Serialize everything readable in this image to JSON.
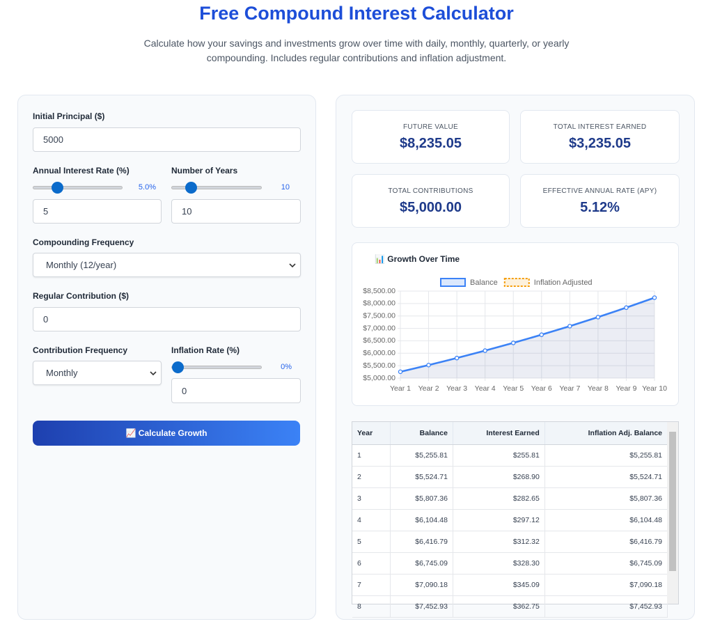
{
  "header": {
    "title": "Free Compound Interest Calculator",
    "subtitle": "Calculate how your savings and investments grow over time with daily, monthly, quarterly, or yearly compounding. Includes regular contributions and inflation adjustment."
  },
  "form": {
    "principal_label": "Initial Principal ($)",
    "principal_value": "5000",
    "rate_label": "Annual Interest Rate (%)",
    "rate_display": "5.0%",
    "rate_value": "5",
    "years_label": "Number of Years",
    "years_display": "10",
    "years_value": "10",
    "compounding_label": "Compounding Frequency",
    "compounding_value": "Monthly (12/year)",
    "contribution_label": "Regular Contribution ($)",
    "contribution_value": "0",
    "contribution_freq_label": "Contribution Frequency",
    "contribution_freq_value": "Monthly",
    "inflation_label": "Inflation Rate (%)",
    "inflation_display": "0%",
    "inflation_value": "0",
    "button": "📈 Calculate Growth"
  },
  "stats": [
    {
      "label": "FUTURE VALUE",
      "value": "$8,235.05"
    },
    {
      "label": "TOTAL INTEREST EARNED",
      "value": "$3,235.05"
    },
    {
      "label": "TOTAL CONTRIBUTIONS",
      "value": "$5,000.00"
    },
    {
      "label": "EFFECTIVE ANNUAL RATE (APY)",
      "value": "5.12%"
    }
  ],
  "chart_data": {
    "type": "line",
    "title": "📊 Growth Over Time",
    "categories": [
      "Year 1",
      "Year 2",
      "Year 3",
      "Year 4",
      "Year 5",
      "Year 6",
      "Year 7",
      "Year 8",
      "Year 9",
      "Year 10"
    ],
    "series": [
      {
        "name": "Balance",
        "color": "#3b82f6",
        "values": [
          5255.81,
          5524.71,
          5807.36,
          6104.48,
          6416.79,
          6745.09,
          7090.18,
          7452.93,
          7834.23,
          8235.05
        ]
      },
      {
        "name": "Inflation Adjusted",
        "color": "#f59e0b",
        "values": [
          5255.81,
          5524.71,
          5807.36,
          6104.48,
          6416.79,
          6745.09,
          7090.18,
          7452.93,
          7834.23,
          8235.05
        ]
      }
    ],
    "ylim": [
      5000,
      8500
    ],
    "yticks": [
      {
        "value": 5000,
        "label": "$5,000.00"
      },
      {
        "value": 5500,
        "label": "$5,500.00"
      },
      {
        "value": 6000,
        "label": "$6,000.00"
      },
      {
        "value": 6500,
        "label": "$6,500.00"
      },
      {
        "value": 7000,
        "label": "$7,000.00"
      },
      {
        "value": 7500,
        "label": "$7,500.00"
      },
      {
        "value": 8000,
        "label": "$8,000.00"
      },
      {
        "value": 8500,
        "label": "$8,500.00"
      }
    ],
    "grid": true,
    "legend": "top"
  },
  "table": {
    "header": [
      "Year",
      "Balance",
      "Interest Earned",
      "Inflation Adj. Balance"
    ],
    "rows": [
      [
        "1",
        "$5,255.81",
        "$255.81",
        "$5,255.81"
      ],
      [
        "2",
        "$5,524.71",
        "$268.90",
        "$5,524.71"
      ],
      [
        "3",
        "$5,807.36",
        "$282.65",
        "$5,807.36"
      ],
      [
        "4",
        "$6,104.48",
        "$297.12",
        "$6,104.48"
      ],
      [
        "5",
        "$6,416.79",
        "$312.32",
        "$6,416.79"
      ],
      [
        "6",
        "$6,745.09",
        "$328.30",
        "$6,745.09"
      ],
      [
        "7",
        "$7,090.18",
        "$345.09",
        "$7,090.18"
      ],
      [
        "8",
        "$7,452.93",
        "$362.75",
        "$7,452.93"
      ]
    ]
  }
}
